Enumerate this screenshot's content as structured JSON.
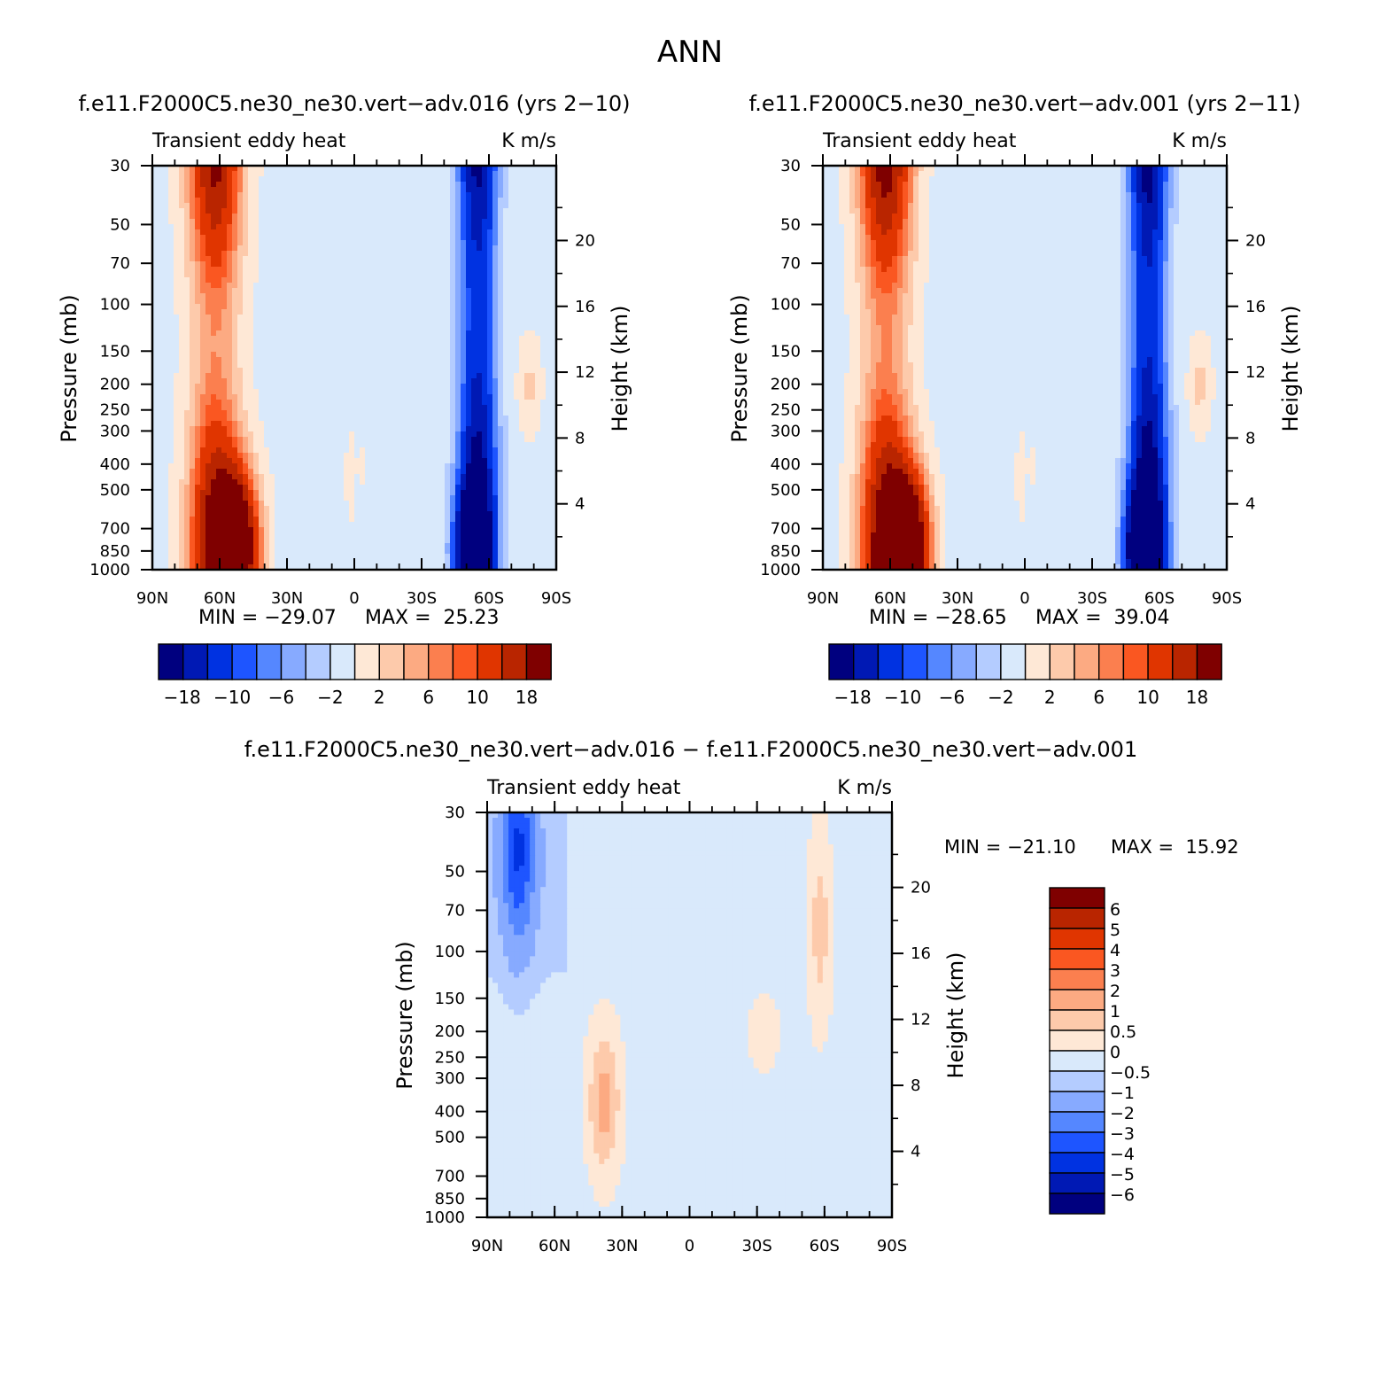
{
  "figure_title": "ANN",
  "chart_data": [
    {
      "type": "heatmap",
      "title": "f.e11.F2000C5.ne30_ne30.vert−adv.016 (yrs 2−10)",
      "left_label": "Transient eddy heat",
      "right_label": "K m/s",
      "xlabel": "",
      "ylabel": "Pressure (mb)",
      "ylabel_right": "Height (km)",
      "x_ticks": [
        "90N",
        "60N",
        "30N",
        "0",
        "30S",
        "60S",
        "90S"
      ],
      "y_ticks": [
        "30",
        "50",
        "70",
        "100",
        "150",
        "200",
        "250",
        "300",
        "400",
        "500",
        "700",
        "850",
        "1000"
      ],
      "y_ticks_right": [
        "20",
        "16",
        "12",
        "8",
        "4"
      ],
      "ylim": [
        1000,
        30
      ],
      "y_scale": "log",
      "min_label": "MIN = −29.07",
      "max_label": "MAX =  25.23",
      "min": -29.07,
      "max": 25.23,
      "colorbar_labels": [
        "−18",
        "−10",
        "−6",
        "−2",
        "2",
        "6",
        "10",
        "18"
      ]
    },
    {
      "type": "heatmap",
      "title": "f.e11.F2000C5.ne30_ne30.vert−adv.001 (yrs 2−11)",
      "left_label": "Transient eddy heat",
      "right_label": "K m/s",
      "xlabel": "",
      "ylabel": "Pressure (mb)",
      "ylabel_right": "Height (km)",
      "x_ticks": [
        "90N",
        "60N",
        "30N",
        "0",
        "30S",
        "60S",
        "90S"
      ],
      "y_ticks": [
        "30",
        "50",
        "70",
        "100",
        "150",
        "200",
        "250",
        "300",
        "400",
        "500",
        "700",
        "850",
        "1000"
      ],
      "y_ticks_right": [
        "20",
        "16",
        "12",
        "8",
        "4"
      ],
      "ylim": [
        1000,
        30
      ],
      "y_scale": "log",
      "min_label": "MIN = −28.65",
      "max_label": "MAX =  39.04",
      "min": -28.65,
      "max": 39.04,
      "colorbar_labels": [
        "−18",
        "−10",
        "−6",
        "−2",
        "2",
        "6",
        "10",
        "18"
      ]
    },
    {
      "type": "heatmap",
      "title": "f.e11.F2000C5.ne30_ne30.vert−adv.016 − f.e11.F2000C5.ne30_ne30.vert−adv.001",
      "left_label": "Transient eddy heat",
      "right_label": "K m/s",
      "xlabel": "",
      "ylabel": "Pressure (mb)",
      "ylabel_right": "Height (km)",
      "x_ticks": [
        "90N",
        "60N",
        "30N",
        "0",
        "30S",
        "60S",
        "90S"
      ],
      "y_ticks": [
        "30",
        "50",
        "70",
        "100",
        "150",
        "200",
        "250",
        "300",
        "400",
        "500",
        "700",
        "850",
        "1000"
      ],
      "y_ticks_right": [
        "20",
        "16",
        "12",
        "8",
        "4"
      ],
      "ylim": [
        1000,
        30
      ],
      "y_scale": "log",
      "min_label": "MIN = −21.10",
      "max_label": "MAX =  15.92",
      "min": -21.1,
      "max": 15.92,
      "colorbar_labels": [
        "6",
        "5",
        "4",
        "3",
        "2",
        "1",
        "0.5",
        "0",
        "−0.5",
        "−1",
        "−2",
        "−3",
        "−4",
        "−5",
        "−6"
      ]
    }
  ],
  "colors": {
    "palette": [
      "#00007f",
      "#0019b4",
      "#0032e1",
      "#1e55ff",
      "#5587ff",
      "#87aaff",
      "#b4ccff",
      "#d9e9fb",
      "#fee8d6",
      "#fdcaab",
      "#fcaa82",
      "#fb7f4f",
      "#fa5721",
      "#e03500",
      "#b92500",
      "#7f0000"
    ],
    "diff_palette": [
      "#00007f",
      "#0019b4",
      "#0032e1",
      "#1e55ff",
      "#5587ff",
      "#87aaff",
      "#b4ccff",
      "#d9e9fb",
      "#fee8d6",
      "#fdcaab",
      "#fcaa82",
      "#fb7f4f",
      "#fa5721",
      "#e03500",
      "#b92500",
      "#7f0000"
    ]
  }
}
